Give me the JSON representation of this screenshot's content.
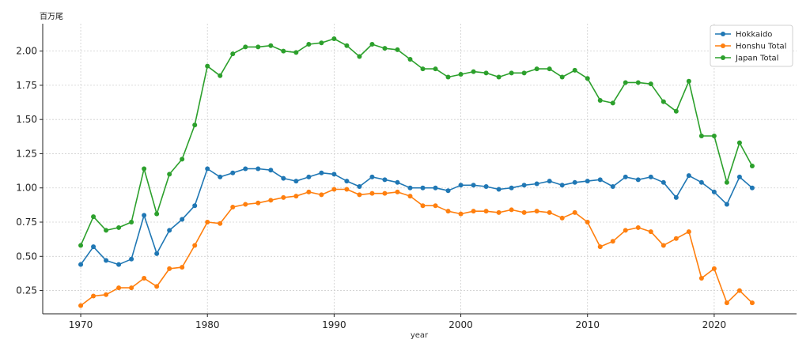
{
  "chart_data": {
    "type": "line",
    "unit_label": "百万尾",
    "xlabel": "year",
    "ylabel": "",
    "xlim": [
      1967,
      2026.5
    ],
    "ylim": [
      0.08,
      2.2
    ],
    "xticks": [
      1970,
      1980,
      1990,
      2000,
      2010,
      2020
    ],
    "yticks": [
      0.25,
      0.5,
      0.75,
      1.0,
      1.25,
      1.5,
      1.75,
      2.0
    ],
    "ytick_labels": [
      "0.25",
      "0.50",
      "0.75",
      "1.00",
      "1.25",
      "1.50",
      "1.75",
      "2.00"
    ],
    "grid": true,
    "legend_position": "top-right",
    "x": [
      1970,
      1971,
      1972,
      1973,
      1974,
      1975,
      1976,
      1977,
      1978,
      1979,
      1980,
      1981,
      1982,
      1983,
      1984,
      1985,
      1986,
      1987,
      1988,
      1989,
      1990,
      1991,
      1992,
      1993,
      1994,
      1995,
      1996,
      1997,
      1998,
      1999,
      2000,
      2001,
      2002,
      2003,
      2004,
      2005,
      2006,
      2007,
      2008,
      2009,
      2010,
      2011,
      2012,
      2013,
      2014,
      2015,
      2016,
      2017,
      2018,
      2019,
      2020,
      2021,
      2022,
      2023
    ],
    "series": [
      {
        "name": "Hokkaido",
        "color": "#1f77b4",
        "values": [
          0.44,
          0.57,
          0.47,
          0.44,
          0.48,
          0.8,
          0.52,
          0.69,
          0.77,
          0.87,
          1.14,
          1.08,
          1.11,
          1.14,
          1.14,
          1.13,
          1.07,
          1.05,
          1.08,
          1.11,
          1.1,
          1.05,
          1.01,
          1.08,
          1.06,
          1.04,
          1.0,
          1.0,
          1.0,
          0.98,
          1.02,
          1.02,
          1.01,
          0.99,
          1.0,
          1.02,
          1.03,
          1.05,
          1.02,
          1.04,
          1.05,
          1.06,
          1.01,
          1.08,
          1.06,
          1.08,
          1.04,
          0.93,
          1.09,
          1.04,
          0.97,
          0.88,
          1.08,
          1.0
        ]
      },
      {
        "name": "Honshu Total",
        "color": "#ff7f0e",
        "values": [
          0.14,
          0.21,
          0.22,
          0.27,
          0.27,
          0.34,
          0.28,
          0.41,
          0.42,
          0.58,
          0.75,
          0.74,
          0.86,
          0.88,
          0.89,
          0.91,
          0.93,
          0.94,
          0.97,
          0.95,
          0.99,
          0.99,
          0.95,
          0.96,
          0.96,
          0.97,
          0.94,
          0.87,
          0.87,
          0.83,
          0.81,
          0.83,
          0.83,
          0.82,
          0.84,
          0.82,
          0.83,
          0.82,
          0.78,
          0.82,
          0.75,
          0.57,
          0.61,
          0.69,
          0.71,
          0.68,
          0.58,
          0.63,
          0.68,
          0.34,
          0.41,
          0.16,
          0.25,
          0.16
        ]
      },
      {
        "name": "Japan Total",
        "color": "#2ca02c",
        "values": [
          0.58,
          0.79,
          0.69,
          0.71,
          0.75,
          1.14,
          0.81,
          1.1,
          1.21,
          1.46,
          1.89,
          1.82,
          1.98,
          2.03,
          2.03,
          2.04,
          2.0,
          1.99,
          2.05,
          2.06,
          2.09,
          2.04,
          1.96,
          2.05,
          2.02,
          2.01,
          1.94,
          1.87,
          1.87,
          1.81,
          1.83,
          1.85,
          1.84,
          1.81,
          1.84,
          1.84,
          1.87,
          1.87,
          1.81,
          1.86,
          1.8,
          1.64,
          1.62,
          1.77,
          1.77,
          1.76,
          1.63,
          1.56,
          1.78,
          1.38,
          1.38,
          1.04,
          1.33,
          1.16
        ]
      }
    ]
  }
}
